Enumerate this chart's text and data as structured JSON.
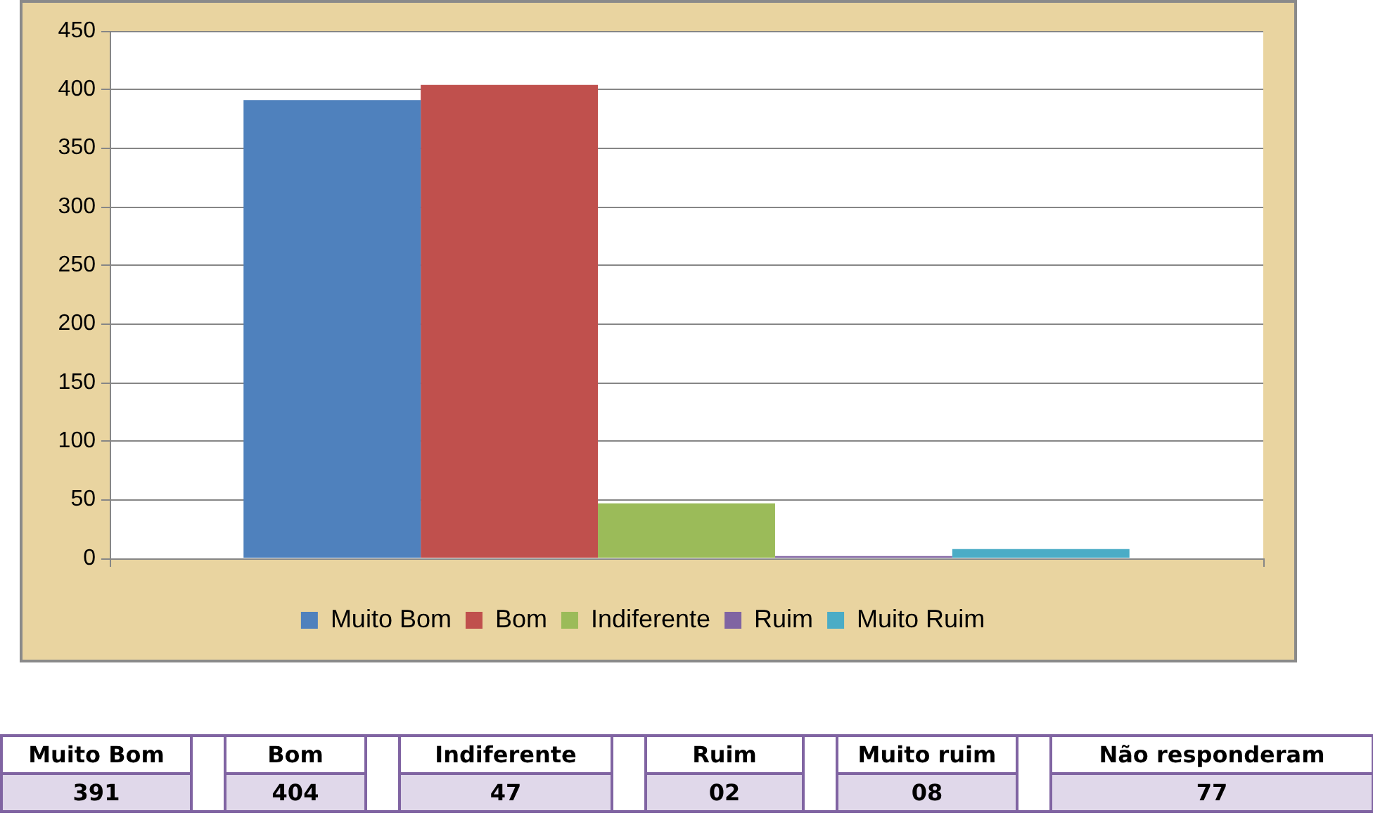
{
  "chart_data": [
    {
      "type": "bar",
      "categories": [
        null
      ],
      "series": [
        {
          "name": "Muito Bom",
          "color": "#4f81bd",
          "values": [
            391
          ]
        },
        {
          "name": "Bom",
          "color": "#c0504d",
          "values": [
            404
          ]
        },
        {
          "name": "Indiferente",
          "color": "#9bbb59",
          "values": [
            47
          ]
        },
        {
          "name": "Ruim",
          "color": "#8064a2",
          "values": [
            2
          ]
        },
        {
          "name": "Muito Ruim",
          "color": "#4bacc6",
          "values": [
            8
          ]
        }
      ],
      "ylim": [
        0,
        450
      ],
      "yticks": [
        0,
        50,
        100,
        150,
        200,
        250,
        300,
        350,
        400,
        450
      ],
      "grid": "y",
      "legend": "bottom"
    },
    {
      "type": "other",
      "categories": [
        "Muito Bom",
        "Bom",
        "Indiferente",
        "Ruim",
        "Muito ruim",
        "Não responderam"
      ],
      "value_labels": [
        "391",
        "404",
        "47",
        "02",
        "08",
        "77"
      ]
    }
  ]
}
